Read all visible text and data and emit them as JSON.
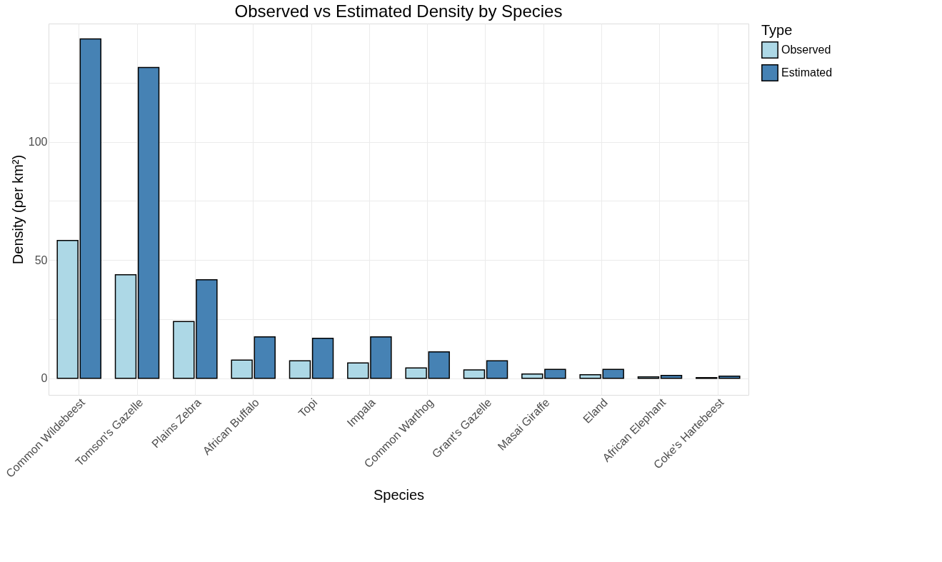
{
  "chart_data": {
    "type": "bar",
    "title": "Observed vs Estimated Density by Species",
    "xlabel": "Species",
    "ylabel": "Density (per km²)",
    "legend_title": "Type",
    "categories": [
      "Common Wildebeest",
      "Tomson's Gazelle",
      "Plains Zebra",
      "African Buffalo",
      "Topi",
      "Impala",
      "Common Warthog",
      "Grant's Gazelle",
      "Masai Giraffe",
      "Eland",
      "African Elephant",
      "Coke's Hartebeest"
    ],
    "series": [
      {
        "name": "Observed",
        "color": "#add8e6",
        "values": [
          58.3,
          43.8,
          24,
          7.7,
          7.4,
          6.5,
          4.4,
          3.6,
          1.8,
          1.5,
          0.6,
          0.3
        ]
      },
      {
        "name": "Estimated",
        "color": "#4682b4",
        "values": [
          143.5,
          131.4,
          41.7,
          17.5,
          16.9,
          17.5,
          11.2,
          7.4,
          3.8,
          3.8,
          1.2,
          0.9
        ]
      }
    ],
    "ylim": [
      -7,
      150
    ],
    "yticks": [
      0,
      {
        "value": 25,
        "label": null
      },
      50,
      {
        "value": 75,
        "label": null
      },
      100,
      {
        "value": 125,
        "label": null
      }
    ],
    "grid": true,
    "legend": "right"
  }
}
